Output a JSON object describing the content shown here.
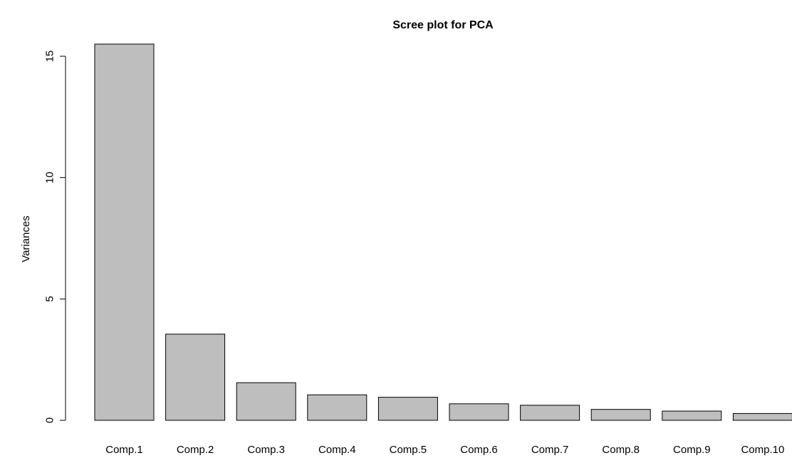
{
  "chart_data": {
    "type": "bar",
    "title": "Scree plot for PCA",
    "xlabel": "",
    "ylabel": "Variances",
    "categories": [
      "Comp.1",
      "Comp.2",
      "Comp.3",
      "Comp.4",
      "Comp.5",
      "Comp.6",
      "Comp.7",
      "Comp.8",
      "Comp.9",
      "Comp.10"
    ],
    "values": [
      15.5,
      3.55,
      1.55,
      1.05,
      0.95,
      0.68,
      0.62,
      0.45,
      0.38,
      0.28
    ],
    "ylim": [
      0,
      15.5
    ],
    "yticks": [
      0,
      5,
      10,
      15
    ],
    "ytick_labels": [
      "0",
      "5",
      "10",
      "15"
    ],
    "bar_color": "#bebebe",
    "bar_edge_color": "#000000",
    "grid": false,
    "legend": "none"
  }
}
